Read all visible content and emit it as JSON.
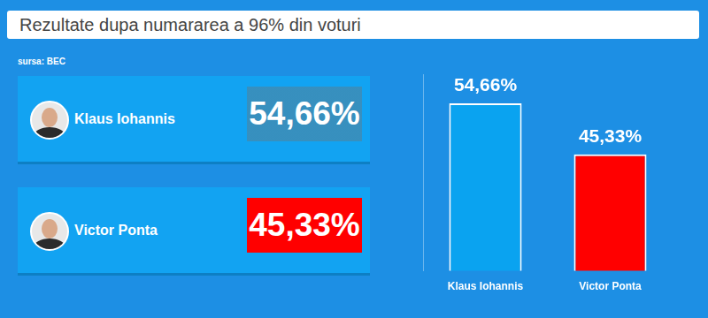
{
  "chart_data": {
    "type": "bar",
    "title": "Rezultate dupa numararea a 96% din voturi",
    "subtitle": "sursa: BEC",
    "categories": [
      "Klaus Iohannis",
      "Victor Ponta"
    ],
    "values": [
      54.66,
      45.33
    ],
    "value_labels": [
      "54,66%",
      "45,33%"
    ],
    "colors": [
      "#0aa3f0",
      "#ff0000"
    ],
    "ylim": [
      24,
      60
    ],
    "grid": false,
    "data_labels": true,
    "tick_labels": "x"
  }
}
